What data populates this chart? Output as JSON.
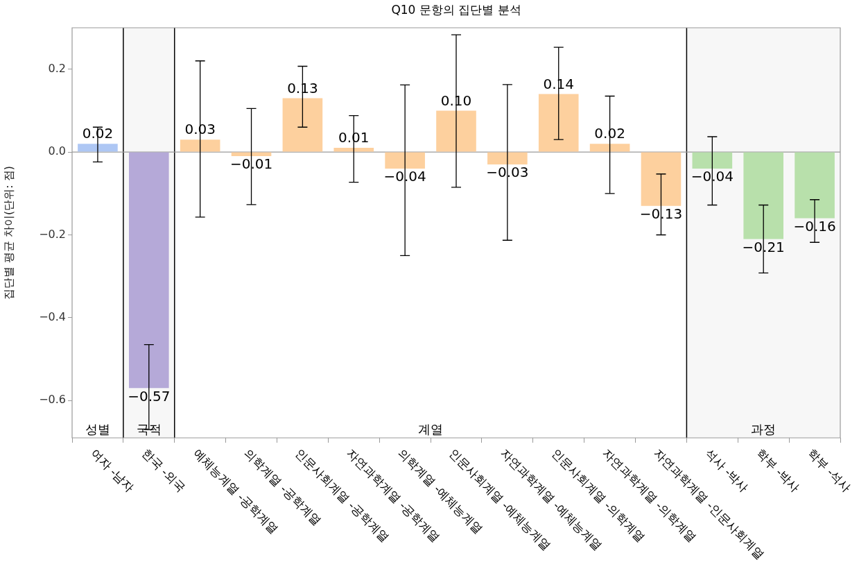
{
  "chart_data": {
    "type": "bar",
    "title": "Q10 문항의 집단별 분석",
    "ylabel": "집단별 평균 차이(단위: 점)",
    "categories": [
      "여자 -남자",
      "한국 -외국",
      "예체능계열 -공학계열",
      "의학계열 -공학계열",
      "인문사회계열 -공학계열",
      "자연과학계열 -공학계열",
      "의학계열 -예체능계열",
      "인문사회계열 -예체능계열",
      "자연과학계열 -예체능계열",
      "인문사회계열 -의학계열",
      "자연과학계열 -의학계열",
      "자연과학계열 -인문사회계열",
      "석사 -박사",
      "학부 -박사",
      "학부 -석사"
    ],
    "values": [
      0.02,
      -0.57,
      0.03,
      -0.01,
      0.13,
      0.01,
      -0.04,
      0.1,
      -0.03,
      0.14,
      0.02,
      -0.13,
      -0.04,
      -0.21,
      -0.16
    ],
    "colors": [
      "#aec7f4",
      "#b5a9d8",
      "#fdd09e",
      "#fdd09e",
      "#fdd09e",
      "#fdd09e",
      "#fdd09e",
      "#fdd09e",
      "#fdd09e",
      "#fdd09e",
      "#fdd09e",
      "#fdd09e",
      "#b8e0ab",
      "#b8e0ab",
      "#b8e0ab"
    ],
    "value_labels": [
      "0.02",
      "−0.57",
      "0.03",
      "−0.01",
      "0.13",
      "0.01",
      "−0.04",
      "0.10",
      "−0.03",
      "0.14",
      "0.02",
      "−0.13",
      "−0.04",
      "−0.21",
      "−0.16"
    ],
    "errors": [
      [
        -0.024,
        0.06
      ],
      [
        -0.67,
        -0.465
      ],
      [
        -0.157,
        0.22
      ],
      [
        -0.127,
        0.105
      ],
      [
        0.06,
        0.207
      ],
      [
        -0.073,
        0.088
      ],
      [
        -0.25,
        0.162
      ],
      [
        -0.085,
        0.283
      ],
      [
        -0.213,
        0.163
      ],
      [
        0.03,
        0.253
      ],
      [
        -0.1,
        0.135
      ],
      [
        -0.2,
        -0.053
      ],
      [
        -0.128,
        0.037
      ],
      [
        -0.292,
        -0.128
      ],
      [
        -0.218,
        -0.115
      ]
    ],
    "ylim": [
      -0.69,
      0.3
    ],
    "yticks": [
      {
        "value": 0.2,
        "label": "0.2"
      },
      {
        "value": 0,
        "label": "0.0"
      },
      {
        "value": -0.2,
        "label": "−0.2"
      },
      {
        "value": -0.4,
        "label": "−0.4"
      },
      {
        "value": -0.6,
        "label": "−0.6"
      }
    ],
    "ref_lines": [
      {
        "axis": "y",
        "value": 0,
        "color": "#999999"
      }
    ],
    "bands": [
      {
        "axis": "x",
        "from": "한국 -외국",
        "to": "한국 -외국",
        "label": "국적",
        "color": "#f7f7f7"
      },
      {
        "axis": "x",
        "from": "석사 -박사",
        "to": "학부 -석사",
        "label": "과정",
        "color": "#f7f7f7"
      }
    ],
    "annotations": [
      "성별",
      "계열"
    ]
  }
}
